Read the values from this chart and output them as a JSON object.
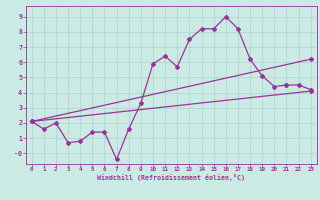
{
  "title": "",
  "xlabel": "Windchill (Refroidissement éolien,°C)",
  "bg_color": "#cceae4",
  "line_color": "#993399",
  "grid_color": "#aad4cc",
  "xlim": [
    -0.5,
    23.5
  ],
  "ylim": [
    -0.7,
    9.7
  ],
  "xticks": [
    0,
    1,
    2,
    3,
    4,
    5,
    6,
    7,
    8,
    9,
    10,
    11,
    12,
    13,
    14,
    15,
    16,
    17,
    18,
    19,
    20,
    21,
    22,
    23
  ],
  "yticks": [
    0,
    1,
    2,
    3,
    4,
    5,
    6,
    7,
    8,
    9
  ],
  "ytick_labels": [
    "-0",
    "1",
    "2",
    "3",
    "4",
    "5",
    "6",
    "7",
    "8",
    "9"
  ],
  "series_zigzag": {
    "x": [
      0,
      1,
      2,
      3,
      4,
      5,
      6,
      7,
      8,
      9,
      10,
      11,
      12,
      13,
      14,
      15,
      16,
      17,
      18,
      19,
      20,
      21
    ],
    "y": [
      2.1,
      1.6,
      2.0,
      0.7,
      0.8,
      1.4,
      1.4,
      -0.4,
      1.6,
      3.3,
      5.9,
      6.4,
      5.7,
      7.5,
      8.2,
      8.2,
      9.0,
      8.2,
      6.2,
      5.1,
      4.4,
      4.5
    ]
  },
  "series_upper": {
    "x": [
      0,
      23
    ],
    "y": [
      2.1,
      6.2
    ]
  },
  "series_lower": {
    "x": [
      0,
      23
    ],
    "y": [
      2.1,
      4.1
    ]
  },
  "series_end": {
    "x": [
      21,
      22,
      23
    ],
    "y": [
      4.5,
      4.5,
      4.2
    ]
  }
}
